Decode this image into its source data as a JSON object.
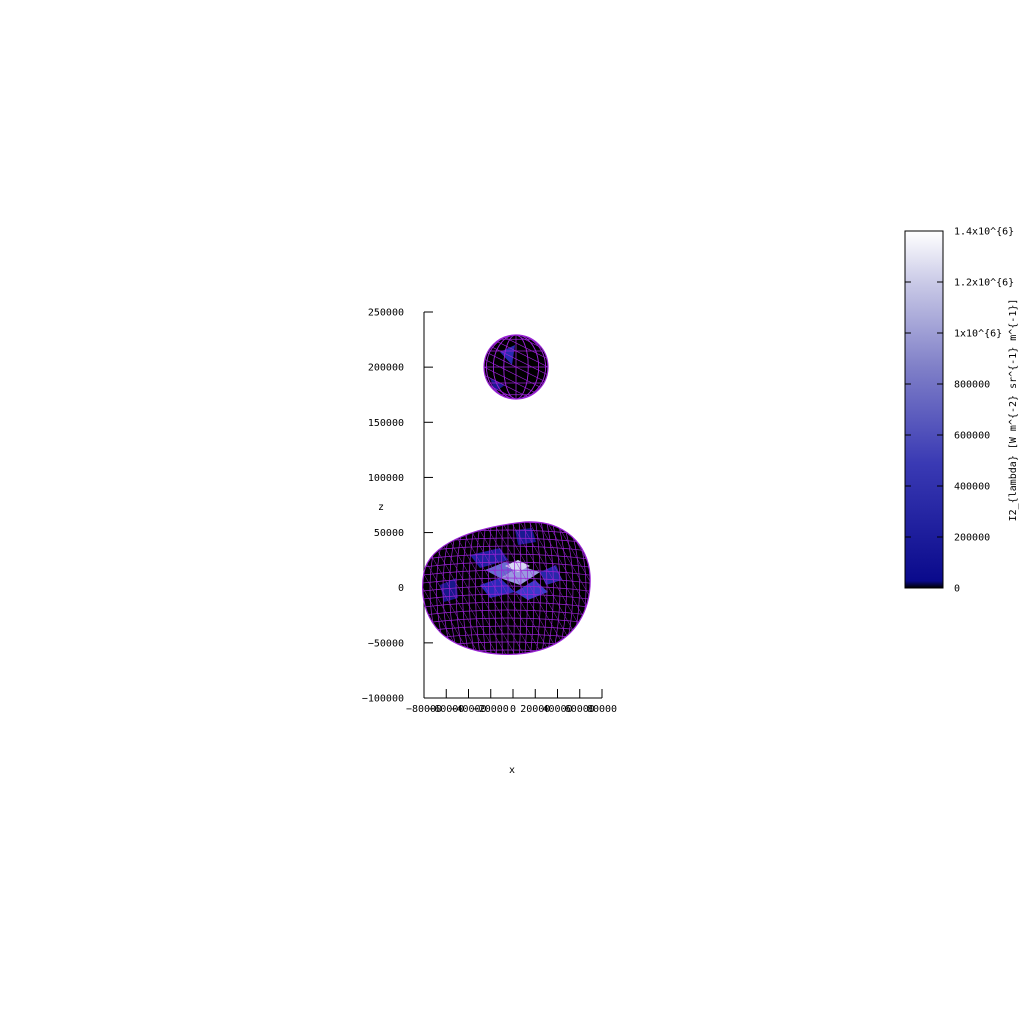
{
  "chart_data": {
    "type": "surface",
    "title": "",
    "xlabel": "x",
    "ylabel": "z",
    "x_ticks": [
      -80000,
      -60000,
      -40000,
      -20000,
      0,
      20000,
      40000,
      60000,
      80000
    ],
    "z_ticks": [
      -100000,
      -50000,
      0,
      50000,
      100000,
      150000,
      200000,
      250000
    ],
    "xlim": [
      -80000,
      80000
    ],
    "zlim": [
      -100000,
      250000
    ],
    "objects": [
      {
        "shape": "sphere",
        "center_x": 3000,
        "center_z": 200000,
        "radius_x": 29000,
        "radius_z": 28000
      },
      {
        "shape": "oblate-body",
        "center_x": 0,
        "center_z": -2000,
        "radius_x": 80000,
        "radius_z_top": 60000,
        "radius_z_bottom": 60000
      }
    ],
    "mesh_color": "#9a22d6",
    "fill_color": "#000000",
    "colorbar": {
      "label": "I2_{lambda} [W m^{-2} sr^{-1} m^{-1}]",
      "min": 0,
      "max": 1400000,
      "ticks": [
        {
          "value": 0,
          "label": "0"
        },
        {
          "value": 200000,
          "label": "200000"
        },
        {
          "value": 400000,
          "label": "400000"
        },
        {
          "value": 600000,
          "label": "600000"
        },
        {
          "value": 800000,
          "label": "800000"
        },
        {
          "value": 1000000,
          "label": "1x10^{6}"
        },
        {
          "value": 1200000,
          "label": "1.2x10^{6}"
        },
        {
          "value": 1400000,
          "label": "1.4x10^{6}"
        }
      ],
      "palette": [
        "#000000",
        "#0a0a8c",
        "#3a3ab4",
        "#8080c8",
        "#c8c8e6",
        "#ffffff"
      ]
    }
  }
}
